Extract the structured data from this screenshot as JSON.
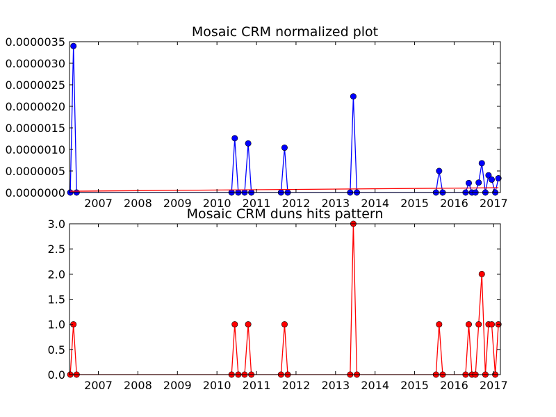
{
  "chart_data": [
    {
      "type": "line",
      "title": "Mosaic CRM normalized plot",
      "xlabel": "",
      "ylabel": "",
      "x_ticks": [
        "2007",
        "2008",
        "2009",
        "2010",
        "2011",
        "2012",
        "2013",
        "2014",
        "2015",
        "2016",
        "2017"
      ],
      "y_ticks": [
        "0.0000000",
        "0.0000005",
        "0.0000010",
        "0.0000015",
        "0.0000020",
        "0.0000025",
        "0.0000030",
        "0.0000035"
      ],
      "xlim": [
        2006.27,
        2017.17
      ],
      "ylim": [
        0,
        3.5e-06
      ],
      "grid": false,
      "series": [
        {
          "color": "#0000ff",
          "marker": "circle",
          "x": [
            2006.29,
            2006.37,
            2006.45,
            2010.37,
            2010.45,
            2010.54,
            2010.7,
            2010.79,
            2010.87,
            2011.62,
            2011.71,
            2011.79,
            2013.37,
            2013.45,
            2013.54,
            2015.54,
            2015.62,
            2015.71,
            2016.29,
            2016.37,
            2016.45,
            2016.54,
            2016.62,
            2016.7,
            2016.79,
            2016.87,
            2016.95,
            2017.04,
            2017.12
          ],
          "y": [
            0,
            3.4e-06,
            0,
            0,
            1.26e-06,
            0,
            0,
            1.14e-06,
            0,
            0,
            1.04e-06,
            0,
            0,
            2.23e-06,
            0,
            0,
            5e-07,
            0,
            0,
            2.2e-07,
            0,
            0,
            2.3e-07,
            6.8e-07,
            0,
            4e-07,
            3e-07,
            0,
            3.3e-07
          ]
        },
        {
          "color": "#ff0000",
          "marker": "none",
          "x": [
            2006.29,
            2017.12
          ],
          "y": [
            3e-08,
            1.1e-07
          ]
        }
      ]
    },
    {
      "type": "line",
      "title": "Mosaic CRM duns hits pattern",
      "xlabel": "",
      "ylabel": "",
      "x_ticks": [
        "2007",
        "2008",
        "2009",
        "2010",
        "2011",
        "2012",
        "2013",
        "2014",
        "2015",
        "2016",
        "2017"
      ],
      "y_ticks": [
        "0.0",
        "0.5",
        "1.0",
        "1.5",
        "2.0",
        "2.5",
        "3.0"
      ],
      "xlim": [
        2006.27,
        2017.17
      ],
      "ylim": [
        0,
        3.0
      ],
      "grid": false,
      "series": [
        {
          "color": "#ff0000",
          "marker": "circle",
          "x": [
            2006.29,
            2006.37,
            2006.45,
            2010.37,
            2010.45,
            2010.54,
            2010.7,
            2010.79,
            2010.87,
            2011.62,
            2011.71,
            2011.79,
            2013.37,
            2013.45,
            2013.54,
            2015.54,
            2015.62,
            2015.71,
            2016.29,
            2016.37,
            2016.45,
            2016.54,
            2016.62,
            2016.7,
            2016.79,
            2016.87,
            2016.95,
            2017.04,
            2017.12
          ],
          "y": [
            0,
            1,
            0,
            0,
            1,
            0,
            0,
            1,
            0,
            0,
            1,
            0,
            0,
            3,
            0,
            0,
            1,
            0,
            0,
            1,
            0,
            0,
            1,
            2,
            0,
            1,
            1,
            0,
            1
          ]
        }
      ]
    }
  ]
}
